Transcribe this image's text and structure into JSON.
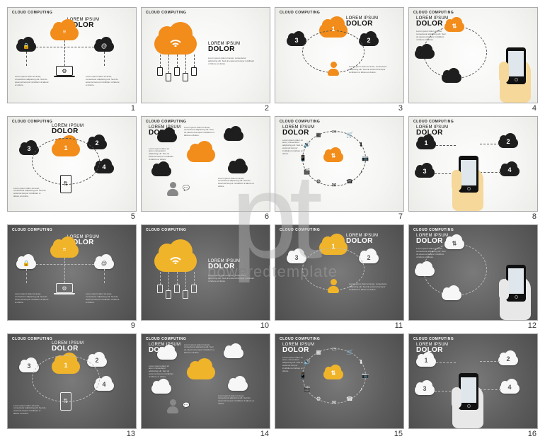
{
  "watermark": {
    "logo": "pt",
    "text": "poweredtemplate"
  },
  "category_label": "CLOUD COMPUTING",
  "kicker": "LOREM IPSUM",
  "title": "DOLOR",
  "lorem": "Lorem ipsum dolor sit amet, consectetur adipiscing elit. Sed do eiusmod tempor incididunt ut labore et dolore.",
  "colors": {
    "orange": "#f28c1a",
    "black": "#1e1e1e",
    "yellow": "#f0b42a",
    "white": "#f7f7f7",
    "light_bg_center": "#fdfdfd",
    "light_bg_edge": "#ebebe8",
    "dark_bg_center": "#7a7a7a",
    "dark_bg_edge": "#4f4f4f",
    "hand_light": "#f5d89a",
    "hand_dark": "#e8e8e8"
  },
  "grid": {
    "cols": 4,
    "rows": 4
  },
  "slides": [
    {
      "n": 1,
      "theme": "light",
      "layout": "hub-laptop",
      "center": "orange",
      "sides": "black",
      "icons": {
        "center": "≡",
        "left": "🔒",
        "right": "@",
        "laptop": "⚙"
      }
    },
    {
      "n": 2,
      "theme": "light",
      "layout": "big-cloud",
      "center": "orange",
      "icon": "wifi"
    },
    {
      "n": 3,
      "theme": "light",
      "layout": "three-user",
      "center": "orange",
      "sides": "black",
      "numbers": [
        1,
        2,
        3
      ],
      "user": "orange"
    },
    {
      "n": 4,
      "theme": "light",
      "layout": "hand-orbit",
      "center": "orange",
      "sides": "black",
      "center_icon": "⇅"
    },
    {
      "n": 5,
      "theme": "light",
      "layout": "four-phone",
      "center": "orange",
      "sides": "black",
      "numbers": [
        1,
        2,
        3,
        4
      ]
    },
    {
      "n": 6,
      "theme": "light",
      "layout": "five-text",
      "center": "orange",
      "sides": "black"
    },
    {
      "n": 7,
      "theme": "light",
      "layout": "icon-wheel",
      "center": "orange",
      "icon": "⇅"
    },
    {
      "n": 8,
      "theme": "light",
      "layout": "hand-four",
      "sides": "black",
      "numbers": [
        1,
        2,
        3,
        4
      ]
    },
    {
      "n": 9,
      "theme": "dark",
      "layout": "hub-laptop",
      "center": "yellow",
      "sides": "white",
      "icons": {
        "center": "≡",
        "left": "🔒",
        "right": "@",
        "laptop": "⚙"
      }
    },
    {
      "n": 10,
      "theme": "dark",
      "layout": "big-cloud",
      "center": "yellow",
      "icon": "wifi"
    },
    {
      "n": 11,
      "theme": "dark",
      "layout": "three-user",
      "center": "yellow",
      "sides": "white",
      "numbers": [
        1,
        2,
        3
      ],
      "user": "yellow"
    },
    {
      "n": 12,
      "theme": "dark",
      "layout": "hand-orbit",
      "center": "white",
      "sides": "white",
      "center_icon": "⇅"
    },
    {
      "n": 13,
      "theme": "dark",
      "layout": "four-phone",
      "center": "yellow",
      "sides": "white",
      "numbers": [
        1,
        2,
        3,
        4
      ]
    },
    {
      "n": 14,
      "theme": "dark",
      "layout": "five-text",
      "center": "yellow",
      "sides": "white"
    },
    {
      "n": 15,
      "theme": "dark",
      "layout": "icon-wheel",
      "center": "yellow",
      "icon": "⇅"
    },
    {
      "n": 16,
      "theme": "dark",
      "layout": "hand-four",
      "sides": "white",
      "numbers": [
        1,
        2,
        3,
        4
      ]
    }
  ]
}
